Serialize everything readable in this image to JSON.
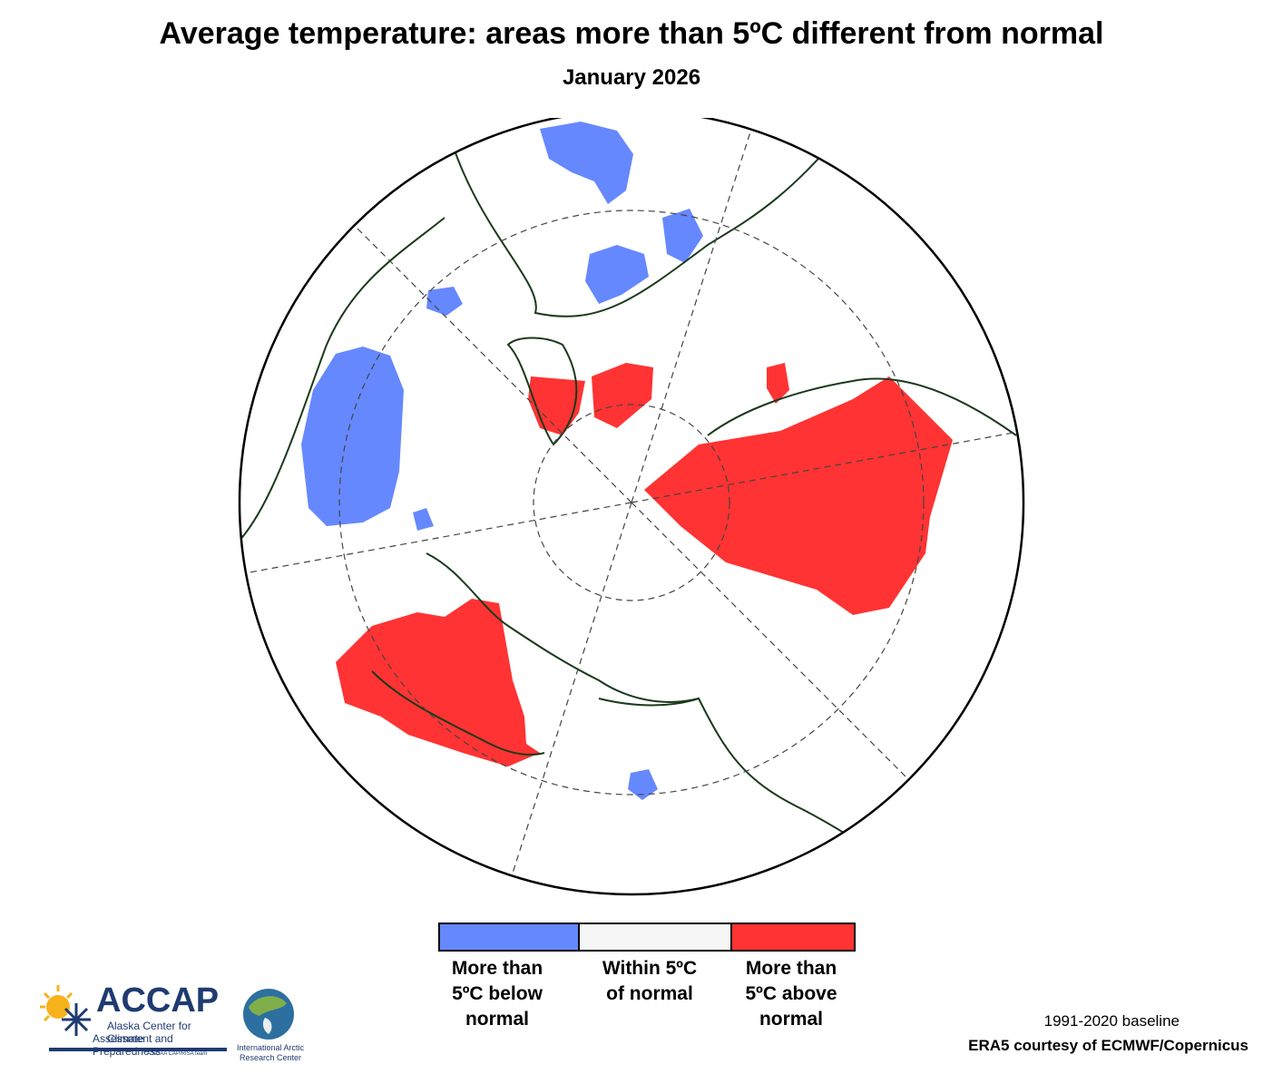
{
  "header": {
    "title": "Average temperature: areas more than 5ºC different from normal",
    "subtitle": "January 2026"
  },
  "map": {
    "projection": "north-polar-stereographic",
    "colors": {
      "below": "#6688ff",
      "within": "#f6f6f6",
      "above": "#ff3333",
      "land_outline": "#1a3a1a",
      "grid": "#444444"
    }
  },
  "legend": {
    "items": [
      {
        "label": "More than\n5ºC below\nnormal",
        "color": "#6688ff"
      },
      {
        "label": "Within 5ºC\nof normal",
        "color": "#f6f6f6"
      },
      {
        "label": "More than\n5ºC above\nnormal",
        "color": "#ff3333"
      }
    ]
  },
  "footer": {
    "baseline": "1991-2020 baseline",
    "source": "ERA5 courtesy of ECMWF/Copernicus"
  },
  "logos": {
    "accap_name": "ACCAP",
    "accap_line1": "Alaska Center for Climate",
    "accap_line2": "Assessment and Preparedness",
    "accap_tag": "A NOAA CAP/RISA team",
    "iarc_line1": "International Arctic",
    "iarc_line2": "Research Center"
  }
}
